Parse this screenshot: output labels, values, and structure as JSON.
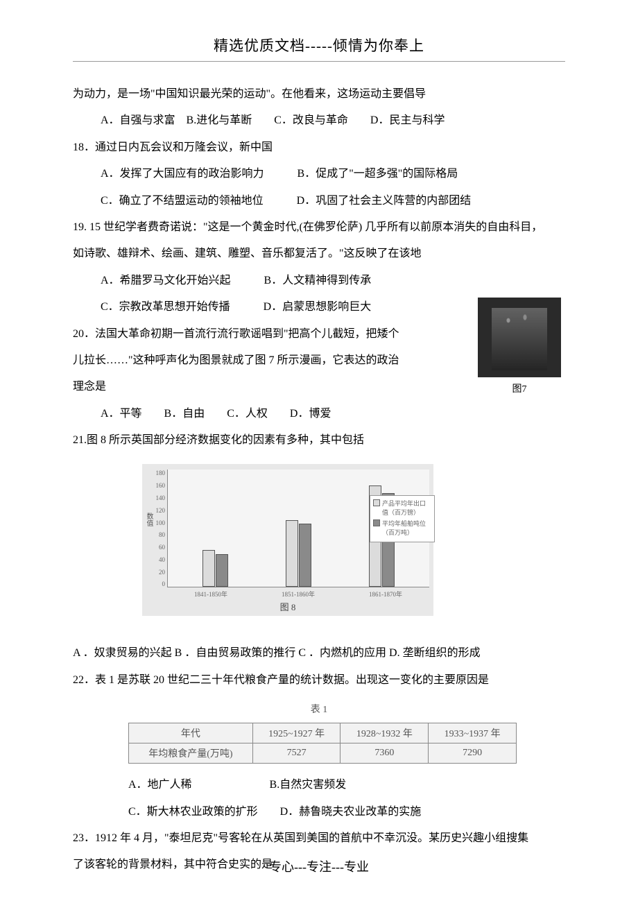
{
  "header": {
    "title": "精选优质文档-----倾情为你奉上"
  },
  "q17_continuation": "为动力，是一场\"中国知识最光荣的运动\"。在他看来，这场运动主要倡导",
  "q17_options": "A．自强与求富　B.进化与革断　　C．改良与革命　　D．民主与科学",
  "q18": {
    "stem": "18．通过日内瓦会议和万隆会议，新中国",
    "row1": "A．发挥了大国应有的政治影响力　　　B．促成了\"一超多强\"的国际格局",
    "row2": "C．确立了不结盟运动的领袖地位　　　D．巩固了社会主义阵营的内部团结"
  },
  "q19": {
    "stem1": "19. 15 世纪学者费奇诺说：\"这是一个黄金时代,(在佛罗伦萨) 几乎所有以前原本消失的自由科目，",
    "stem2": "如诗歌、雄辩术、绘画、建筑、雕塑、音乐都复活了。\"这反映了在该地",
    "row1": "A．希腊罗马文化开始兴起　　　B．人文精神得到传承",
    "row2": "C．宗教改革思想开始传播　　　D．启蒙思想影响巨大"
  },
  "fig7_caption": "图7",
  "q20": {
    "stem1": "20．法国大革命初期一首流行流行歌谣唱到\"把高个儿截短，把矮个",
    "stem2": "儿拉长……\"这种呼声化为图景就成了图 7 所示漫画，它表达的政治",
    "stem3": "理念是",
    "options": "A．平等　　B．自由　　C．人权　　D．博爱"
  },
  "q21": {
    "stem": "21.图 8 所示英国部分经济数据变化的因素有多种，其中包括",
    "options": "A ．奴隶贸易的兴起 B ．自由贸易政策的推行 C ．内燃机的应用  D. 垄断组织的形成"
  },
  "chart8": {
    "type": "bar",
    "y_ticks": [
      "180",
      "160",
      "140",
      "120",
      "100",
      "80",
      "60",
      "40",
      "20",
      "0"
    ],
    "y_label": "数值",
    "y_max": 180,
    "categories": [
      "1841-1850年",
      "1851-1860年",
      "1861-1870年"
    ],
    "series": [
      {
        "name": "产品平均年出口值（百万镑）",
        "color": "#dcdcdc",
        "values": [
          58,
          105,
          160
        ]
      },
      {
        "name": "平均年船舶吨位（百万吨）",
        "color": "#8a8a8a",
        "values": [
          52,
          100,
          148
        ]
      }
    ],
    "caption": "图 8",
    "bg": "#e8e8e8"
  },
  "q22": {
    "stem": "22．表 1 是苏联 20 世纪二三十年代粮食产量的统计数据。出现这一变化的主要原因是",
    "row1": "A．地广人稀　　　　　　　B.自然灾害频发",
    "row2": "C．斯大林农业政策的扩形　　D．赫鲁晓夫农业改革的实施"
  },
  "table1": {
    "caption": "表 1",
    "header": [
      "年代",
      "1925~1927 年",
      "1928~1932 年",
      "1933~1937 年"
    ],
    "row": [
      "年均粮食产量(万吨)",
      "7527",
      "7360",
      "7290"
    ]
  },
  "q23": {
    "stem1": "23．1912 年 4 月，\"泰坦尼克\"号客轮在从英国到美国的首航中不幸沉没。某历史兴趣小组搜集",
    "stem2": "了该客轮的背景材料，其中符合史实的是"
  },
  "footer": "专心---专注---专业"
}
